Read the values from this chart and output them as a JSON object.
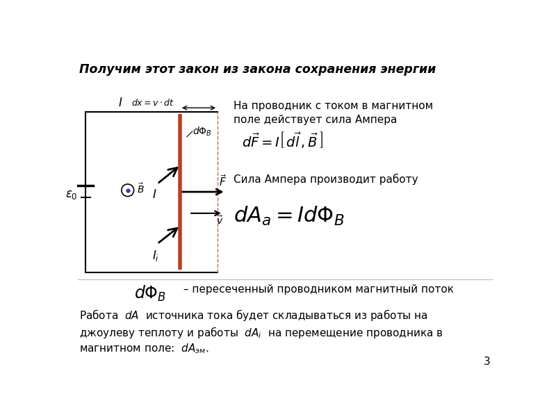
{
  "title": "Получим этот закон из закона сохранения энергии",
  "bg_color": "#ffffff",
  "text_color": "#000000",
  "page_number": "3",
  "right_text1": "На проводник с током в магнитном\nполе действует сила Ампера",
  "right_text2": "Сила Ампера производит работу",
  "bottom_text1": " – пересеченный проводником магнитный поток",
  "circuit_color": "#000000",
  "conductor_color": "#b84020",
  "dashed_color": "#cc6644"
}
